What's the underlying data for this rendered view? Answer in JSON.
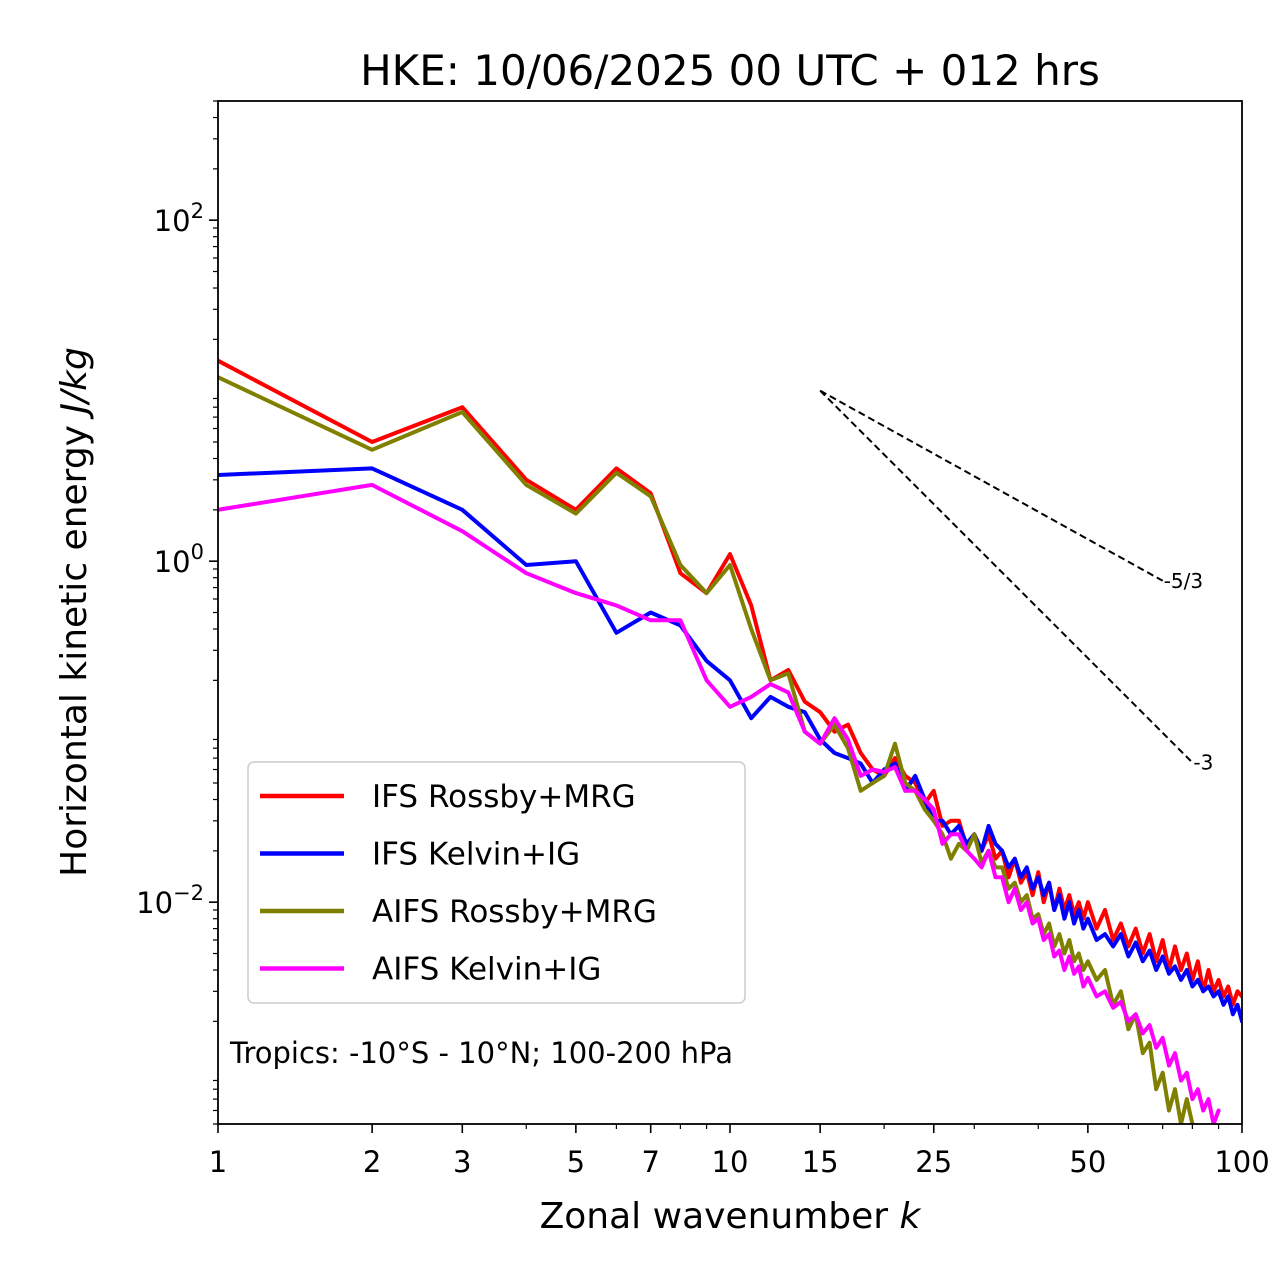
{
  "chart_data": {
    "type": "line",
    "title": "HKE: 10/06/2025 00 UTC + 012 hrs",
    "xlabel_text": "Zonal wavenumber ",
    "xlabel_var": "k",
    "ylabel_text": "Horizontal kinetic energy ",
    "ylabel_unit": "J/kg",
    "x_scale": "log",
    "y_scale": "log",
    "xlim": [
      1,
      100
    ],
    "ylim": [
      0.0005,
      500
    ],
    "x_ticks": [
      {
        "value": 1,
        "label": "1"
      },
      {
        "value": 2,
        "label": "2"
      },
      {
        "value": 3,
        "label": "3"
      },
      {
        "value": 5,
        "label": "5"
      },
      {
        "value": 7,
        "label": "7"
      },
      {
        "value": 10,
        "label": "10"
      },
      {
        "value": 15,
        "label": "15"
      },
      {
        "value": 25,
        "label": "25"
      },
      {
        "value": 50,
        "label": "50"
      },
      {
        "value": 100,
        "label": "100"
      }
    ],
    "y_ticks": [
      {
        "value": 0.01,
        "base": "10",
        "exp": "−2"
      },
      {
        "value": 1,
        "base": "10",
        "exp": "0"
      },
      {
        "value": 100,
        "base": "10",
        "exp": "2"
      }
    ],
    "grid": false,
    "legend_position": "lower-left",
    "annotation": "Tropics: -10°S - 10°N; 100-200 hPa",
    "reference_slopes": [
      {
        "label": "-5/3",
        "slope": -1.6667,
        "x_start": 15,
        "y_start": 10,
        "x_end": 70
      },
      {
        "label": "-3",
        "slope": -3,
        "x_start": 15,
        "y_start": 10,
        "x_end": 80
      }
    ],
    "series": [
      {
        "name": "IFS Rossby+MRG",
        "color": "#ff0000",
        "x": [
          1,
          2,
          3,
          4,
          5,
          6,
          7,
          8,
          9,
          10,
          11,
          12,
          13,
          14,
          15,
          16,
          17,
          18,
          19,
          20,
          21,
          22,
          23,
          24,
          25,
          26,
          27,
          28,
          29,
          30,
          31,
          32,
          33,
          34,
          35,
          36,
          37,
          38,
          39,
          40,
          41,
          42,
          43,
          44,
          45,
          46,
          47,
          48,
          49,
          50,
          52,
          54,
          56,
          58,
          60,
          62,
          64,
          66,
          68,
          70,
          72,
          74,
          76,
          78,
          80,
          82,
          84,
          86,
          88,
          90,
          92,
          94,
          96,
          98,
          100
        ],
        "y": [
          15,
          5,
          8,
          3,
          2,
          3.5,
          2.5,
          0.85,
          0.65,
          1.1,
          0.55,
          0.2,
          0.23,
          0.15,
          0.13,
          0.1,
          0.11,
          0.075,
          0.06,
          0.055,
          0.07,
          0.055,
          0.05,
          0.038,
          0.045,
          0.028,
          0.03,
          0.03,
          0.021,
          0.025,
          0.02,
          0.025,
          0.018,
          0.02,
          0.014,
          0.018,
          0.013,
          0.015,
          0.011,
          0.015,
          0.01,
          0.013,
          0.009,
          0.012,
          0.009,
          0.011,
          0.0085,
          0.01,
          0.008,
          0.01,
          0.007,
          0.009,
          0.006,
          0.0075,
          0.0055,
          0.007,
          0.005,
          0.0065,
          0.0045,
          0.006,
          0.004,
          0.0055,
          0.004,
          0.005,
          0.0035,
          0.0045,
          0.003,
          0.004,
          0.003,
          0.0035,
          0.0028,
          0.0032,
          0.0025,
          0.003,
          0.0028
        ]
      },
      {
        "name": "IFS Kelvin+IG",
        "color": "#0000ff",
        "x": [
          1,
          2,
          3,
          4,
          5,
          6,
          7,
          8,
          9,
          10,
          11,
          12,
          13,
          14,
          15,
          16,
          17,
          18,
          19,
          20,
          21,
          22,
          23,
          24,
          25,
          26,
          27,
          28,
          29,
          30,
          31,
          32,
          33,
          34,
          35,
          36,
          37,
          38,
          39,
          40,
          41,
          42,
          43,
          44,
          45,
          46,
          47,
          48,
          49,
          50,
          52,
          54,
          56,
          58,
          60,
          62,
          64,
          66,
          68,
          70,
          72,
          74,
          76,
          78,
          80,
          82,
          84,
          86,
          88,
          90,
          92,
          94,
          96,
          98,
          100
        ],
        "y": [
          3.2,
          3.5,
          2,
          0.95,
          1.0,
          0.38,
          0.5,
          0.42,
          0.26,
          0.2,
          0.12,
          0.16,
          0.14,
          0.13,
          0.09,
          0.075,
          0.07,
          0.065,
          0.05,
          0.06,
          0.065,
          0.045,
          0.055,
          0.04,
          0.03,
          0.03,
          0.025,
          0.028,
          0.022,
          0.025,
          0.02,
          0.028,
          0.022,
          0.02,
          0.016,
          0.018,
          0.014,
          0.016,
          0.012,
          0.014,
          0.011,
          0.013,
          0.009,
          0.011,
          0.008,
          0.01,
          0.0075,
          0.009,
          0.007,
          0.008,
          0.006,
          0.0065,
          0.0055,
          0.0065,
          0.0048,
          0.0058,
          0.0045,
          0.0052,
          0.004,
          0.0048,
          0.0038,
          0.0042,
          0.0035,
          0.004,
          0.0032,
          0.0035,
          0.003,
          0.0032,
          0.0028,
          0.003,
          0.0025,
          0.0028,
          0.0022,
          0.0025,
          0.002
        ]
      },
      {
        "name": "AIFS Rossby+MRG",
        "color": "#808000",
        "x": [
          1,
          2,
          3,
          4,
          5,
          6,
          7,
          8,
          9,
          10,
          11,
          12,
          13,
          14,
          15,
          16,
          17,
          18,
          19,
          20,
          21,
          22,
          23,
          24,
          25,
          26,
          27,
          28,
          29,
          30,
          31,
          32,
          33,
          34,
          35,
          36,
          37,
          38,
          39,
          40,
          41,
          42,
          43,
          44,
          45,
          46,
          47,
          48,
          49,
          50,
          52,
          54,
          56,
          58,
          60,
          62,
          64,
          66,
          68,
          70,
          72,
          74,
          76,
          78,
          80
        ],
        "y": [
          12,
          4.5,
          7.5,
          2.8,
          1.9,
          3.3,
          2.4,
          0.95,
          0.65,
          0.95,
          0.4,
          0.2,
          0.22,
          0.1,
          0.085,
          0.11,
          0.08,
          0.045,
          0.05,
          0.055,
          0.085,
          0.05,
          0.045,
          0.035,
          0.03,
          0.025,
          0.018,
          0.022,
          0.02,
          0.025,
          0.017,
          0.02,
          0.016,
          0.016,
          0.012,
          0.013,
          0.01,
          0.011,
          0.008,
          0.0085,
          0.0065,
          0.0075,
          0.0055,
          0.0065,
          0.005,
          0.006,
          0.0045,
          0.005,
          0.004,
          0.0045,
          0.0035,
          0.004,
          0.0025,
          0.003,
          0.0018,
          0.0022,
          0.0013,
          0.0015,
          0.0008,
          0.001,
          0.0006,
          0.0008,
          0.0005,
          0.0007,
          0.0005
        ]
      },
      {
        "name": "AIFS Kelvin+IG",
        "color": "#ff00ff",
        "x": [
          1,
          2,
          3,
          4,
          5,
          6,
          7,
          8,
          9,
          10,
          11,
          12,
          13,
          14,
          15,
          16,
          17,
          18,
          19,
          20,
          21,
          22,
          23,
          24,
          25,
          26,
          27,
          28,
          29,
          30,
          31,
          32,
          33,
          34,
          35,
          36,
          37,
          38,
          39,
          40,
          41,
          42,
          43,
          44,
          45,
          46,
          47,
          48,
          49,
          50,
          52,
          54,
          56,
          58,
          60,
          62,
          64,
          66,
          68,
          70,
          72,
          74,
          76,
          78,
          80,
          82,
          84,
          86,
          88,
          90
        ],
        "y": [
          2,
          2.8,
          1.5,
          0.85,
          0.65,
          0.55,
          0.45,
          0.45,
          0.2,
          0.14,
          0.16,
          0.19,
          0.17,
          0.1,
          0.085,
          0.12,
          0.09,
          0.055,
          0.06,
          0.058,
          0.062,
          0.045,
          0.045,
          0.04,
          0.035,
          0.022,
          0.025,
          0.025,
          0.02,
          0.018,
          0.016,
          0.02,
          0.014,
          0.014,
          0.01,
          0.012,
          0.009,
          0.01,
          0.0075,
          0.008,
          0.006,
          0.0065,
          0.0048,
          0.0052,
          0.004,
          0.0048,
          0.0038,
          0.0042,
          0.0032,
          0.0036,
          0.0028,
          0.003,
          0.0024,
          0.0026,
          0.002,
          0.0022,
          0.0017,
          0.0019,
          0.0014,
          0.0016,
          0.0011,
          0.0013,
          0.0009,
          0.001,
          0.0007,
          0.0008,
          0.0006,
          0.0007,
          0.0005,
          0.0006
        ]
      }
    ]
  }
}
